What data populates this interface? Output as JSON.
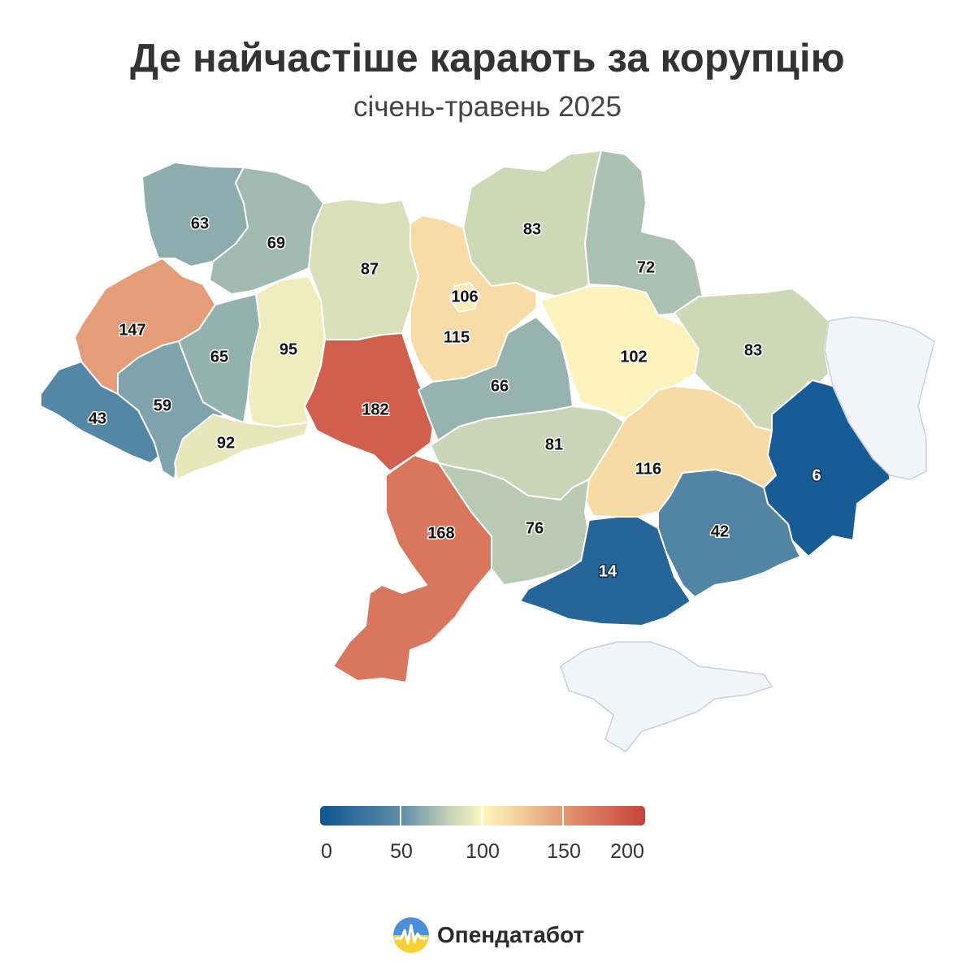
{
  "title": "Де найчастіше карають за корупцію",
  "subtitle": "січень-травень 2025",
  "map_data": {
    "regions": [
      {
        "name": "Волинська",
        "value": 63
      },
      {
        "name": "Рівненська",
        "value": 69
      },
      {
        "name": "Житомирська",
        "value": 87
      },
      {
        "name": "Київська",
        "value": 115
      },
      {
        "name": "м. Київ",
        "value": 106
      },
      {
        "name": "Чернігівська",
        "value": 83
      },
      {
        "name": "Сумська",
        "value": 72
      },
      {
        "name": "Львівська",
        "value": 147
      },
      {
        "name": "Тернопільська",
        "value": 65
      },
      {
        "name": "Хмельницька",
        "value": 95
      },
      {
        "name": "Вінницька",
        "value": 182
      },
      {
        "name": "Черкаська",
        "value": 66
      },
      {
        "name": "Полтавська",
        "value": 102
      },
      {
        "name": "Харківська",
        "value": 83
      },
      {
        "name": "Закарпатська",
        "value": 43
      },
      {
        "name": "Івано-Франківська",
        "value": 59
      },
      {
        "name": "Чернівецька",
        "value": 92
      },
      {
        "name": "Кіровоградська",
        "value": 81
      },
      {
        "name": "Дніпропетровська",
        "value": 116
      },
      {
        "name": "Донецька",
        "value": 6
      },
      {
        "name": "Одеська",
        "value": 168
      },
      {
        "name": "Миколаївська",
        "value": 76
      },
      {
        "name": "Херсонська",
        "value": 14
      },
      {
        "name": "Запорізька",
        "value": 42
      },
      {
        "name": "Луганська",
        "value": null
      },
      {
        "name": "АР Крим",
        "value": null
      }
    ],
    "colors": {
      "nodata": "#f3f4f7",
      "scale": [
        "#0e5592",
        "#5f8ea8",
        "#c6d3b6",
        "#fdf5bf",
        "#f3cc97",
        "#e08b6d",
        "#c6423a"
      ]
    }
  },
  "legend": {
    "min": 0,
    "max": 200,
    "ticks": [
      "0",
      "50",
      "100",
      "150",
      "200"
    ]
  },
  "brand": {
    "name": "Опендатабот"
  }
}
